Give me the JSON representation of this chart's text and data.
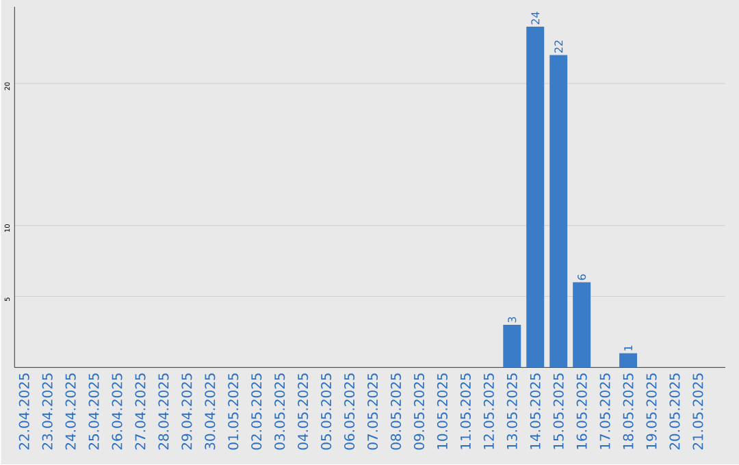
{
  "chart_data": {
    "type": "bar",
    "categories": [
      "22.04.2025",
      "23.04.2025",
      "24.04.2025",
      "25.04.2025",
      "26.04.2025",
      "27.04.2025",
      "28.04.2025",
      "29.04.2025",
      "30.04.2025",
      "01.05.2025",
      "02.05.2025",
      "03.05.2025",
      "04.05.2025",
      "05.05.2025",
      "06.05.2025",
      "07.05.2025",
      "08.05.2025",
      "09.05.2025",
      "10.05.2025",
      "11.05.2025",
      "12.05.2025",
      "13.05.2025",
      "14.05.2025",
      "15.05.2025",
      "16.05.2025",
      "17.05.2025",
      "18.05.2025",
      "19.05.2025",
      "20.05.2025",
      "21.05.2025"
    ],
    "values": [
      0,
      0,
      0,
      0,
      0,
      0,
      0,
      0,
      0,
      0,
      0,
      0,
      0,
      0,
      0,
      0,
      0,
      0,
      0,
      0,
      0,
      3,
      24,
      22,
      6,
      0,
      1,
      0,
      0,
      0
    ],
    "value_labels": [
      null,
      null,
      null,
      null,
      null,
      null,
      null,
      null,
      null,
      null,
      null,
      null,
      null,
      null,
      null,
      null,
      null,
      null,
      null,
      null,
      null,
      "3",
      "24",
      "22",
      "6",
      null,
      "1",
      null,
      null,
      null
    ],
    "color": "#3a7cc8",
    "ylim": [
      0,
      25.4
    ],
    "yticks": [
      5,
      10,
      20
    ],
    "grid": "y"
  }
}
